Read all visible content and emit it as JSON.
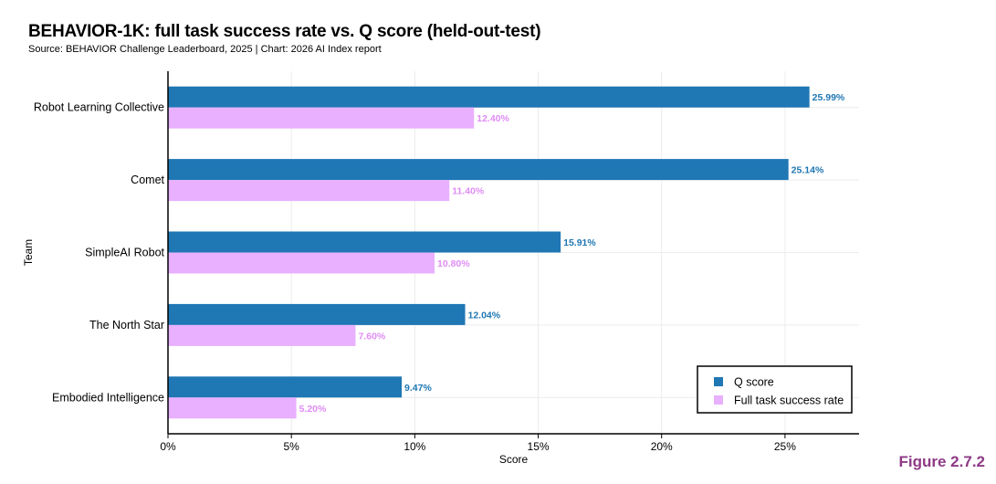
{
  "header": {
    "title": "BEHAVIOR-1K: full task success rate vs. Q score (held-out-test)",
    "subtitle": "Source: BEHAVIOR Challenge Leaderboard, 2025 | Chart: 2026 AI Index report"
  },
  "figure_label": "Figure 2.7.2",
  "chart_data": {
    "type": "bar",
    "orientation": "horizontal",
    "title": "BEHAVIOR-1K: full task success rate vs. Q score (held-out-test)",
    "xlabel": "Score",
    "ylabel": "Team",
    "xlim": [
      0,
      28
    ],
    "x_ticks": [
      0,
      5,
      10,
      15,
      20,
      25
    ],
    "x_tick_labels": [
      "0%",
      "5%",
      "10%",
      "15%",
      "20%",
      "25%"
    ],
    "grid": true,
    "categories": [
      "Robot Learning Collective",
      "Comet",
      "SimpleAI Robot",
      "The North Star",
      "Embodied Intelligence"
    ],
    "series": [
      {
        "name": "Q score",
        "color": "#1f77b4",
        "label_color": "#1f77b4",
        "values": [
          25.99,
          25.14,
          15.91,
          12.04,
          9.47
        ],
        "labels": [
          "25.99%",
          "25.14%",
          "15.91%",
          "12.04%",
          "9.47%"
        ]
      },
      {
        "name": "Full task success rate",
        "color": "#e9b0ff",
        "label_color": "#e08cf5",
        "values": [
          12.4,
          11.4,
          10.8,
          7.6,
          5.2
        ],
        "labels": [
          "12.40%",
          "11.40%",
          "10.80%",
          "7.60%",
          "5.20%"
        ]
      }
    ],
    "legend_position": "bottom-right"
  }
}
